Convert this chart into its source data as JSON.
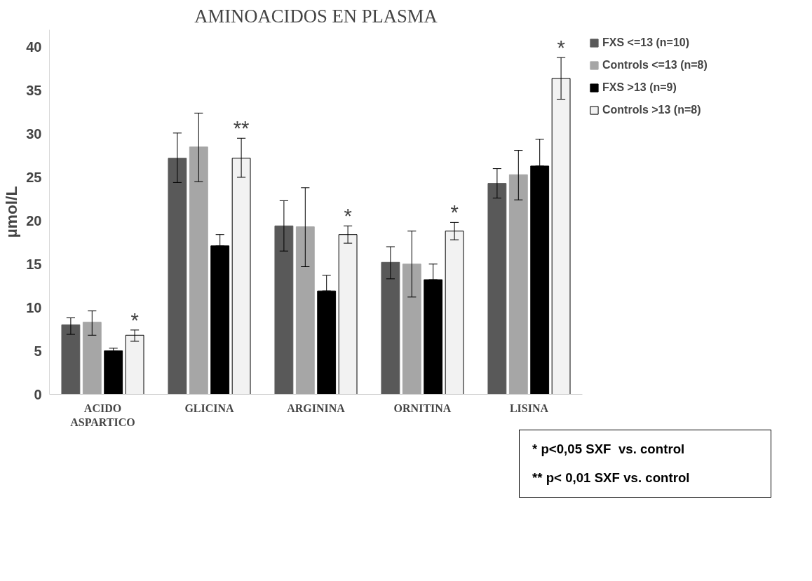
{
  "chart_data": {
    "type": "bar",
    "title": "AMINOACIDOS EN PLASMA",
    "ylabel": "µmol/L",
    "categories": [
      "ACIDO\nASPARTICO",
      "GLICINA",
      "ARGININA",
      "ORNITINA",
      "LISINA"
    ],
    "series": [
      {
        "name": "FXS <=13 (n=10)",
        "color": "#595959",
        "values": [
          8.0,
          27.2,
          19.4,
          15.2,
          24.3
        ],
        "errors": [
          [
            6.9,
            8.8
          ],
          [
            24.4,
            30.1
          ],
          [
            16.5,
            22.3
          ],
          [
            13.3,
            17.0
          ],
          [
            22.6,
            26.0
          ]
        ]
      },
      {
        "name": "Controls <=13 (n=8)",
        "color": "#a6a6a6",
        "values": [
          8.3,
          28.5,
          19.3,
          15.0,
          25.3
        ],
        "errors": [
          [
            6.8,
            9.6
          ],
          [
            24.5,
            32.4
          ],
          [
            14.7,
            23.8
          ],
          [
            11.2,
            18.8
          ],
          [
            22.4,
            28.1
          ]
        ]
      },
      {
        "name": "FXS >13 (n=9)",
        "color": "#000000",
        "values": [
          5.0,
          17.1,
          11.9,
          13.2,
          26.3
        ],
        "errors": [
          [
            5.0,
            5.3
          ],
          [
            17.1,
            18.4
          ],
          [
            11.9,
            13.7
          ],
          [
            13.2,
            15.0
          ],
          [
            26.3,
            29.4
          ]
        ]
      },
      {
        "name": "Controls >13 (n=8)",
        "color": "#f2f2f2",
        "values": [
          6.8,
          27.2,
          18.4,
          18.8,
          36.4
        ],
        "errors": [
          [
            6.1,
            7.4
          ],
          [
            25.0,
            29.5
          ],
          [
            17.4,
            19.4
          ],
          [
            17.8,
            19.8
          ],
          [
            34.0,
            38.8
          ]
        ]
      }
    ],
    "ylim": [
      0,
      42
    ],
    "yticks": [
      0,
      5,
      10,
      15,
      20,
      25,
      30,
      35,
      40
    ],
    "grid": false,
    "legend": "top right",
    "annotations": [
      "*",
      "**",
      "*",
      "*",
      "*",
      "* p<0,05 SXF  vs. control",
      "** p< 0,01 SXF vs. control"
    ]
  }
}
